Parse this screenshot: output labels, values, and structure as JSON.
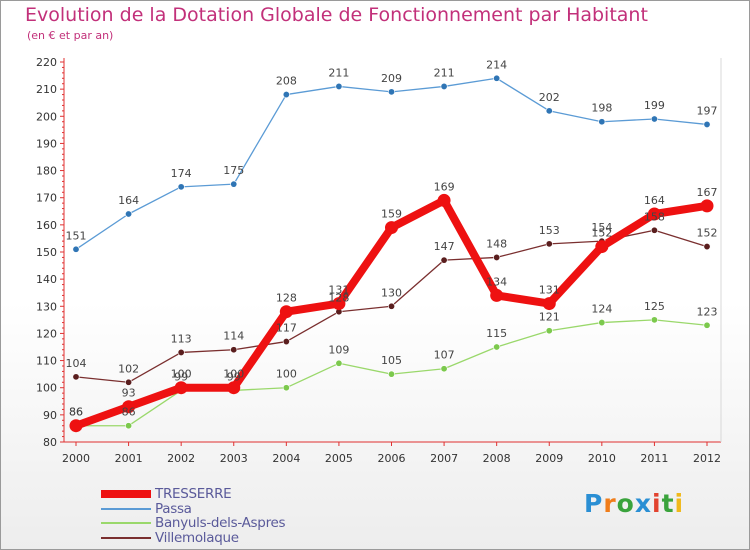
{
  "title": "Evolution de la Dotation Globale de Fonctionnement par Habitant",
  "subtitle": "(en € et par an)",
  "logo": {
    "text": "Proxiti",
    "letter_colors": [
      "#2a8fd4",
      "#f07d1a",
      "#3aa33c",
      "#2a8fd4",
      "#e2432f",
      "#3aa33c",
      "#f0b81a"
    ]
  },
  "chart_data": {
    "type": "line",
    "title": "Evolution de la Dotation Globale de Fonctionnement par Habitant",
    "subtitle": "(en € et par an)",
    "x": [
      "2000",
      "2001",
      "2002",
      "2003",
      "2004",
      "2005",
      "2006",
      "2007",
      "2008",
      "2009",
      "2010",
      "2011",
      "2012"
    ],
    "ylim": [
      80,
      220
    ],
    "yticks": [
      80,
      90,
      100,
      110,
      120,
      130,
      140,
      150,
      160,
      170,
      180,
      190,
      200,
      210,
      220
    ],
    "grid": false,
    "legend": "bottom-left",
    "series": [
      {
        "name": "Passa",
        "color": "#5b9bd5",
        "marker": "#2f75b5",
        "values": [
          151,
          164,
          174,
          175,
          208,
          211,
          209,
          211,
          214,
          202,
          198,
          199,
          197
        ]
      },
      {
        "name": "Banyuls-dels-Aspres",
        "color": "#9ad86b",
        "marker": "#7cc94d",
        "values": [
          86,
          86,
          99,
          99,
          100,
          109,
          105,
          107,
          115,
          121,
          124,
          125,
          123
        ]
      },
      {
        "name": "Villemolaque",
        "color": "#7a2f2f",
        "marker": "#5a1e1e",
        "values": [
          104,
          102,
          113,
          114,
          117,
          128,
          130,
          147,
          148,
          153,
          154,
          158,
          152
        ]
      },
      {
        "name": "TRESSERRE",
        "color": "#ee1111",
        "marker": "#ee1111",
        "values": [
          86,
          93,
          100,
          100,
          128,
          131,
          159,
          169,
          134,
          131,
          152,
          164,
          167
        ]
      }
    ],
    "legend_order": [
      "TRESSERRE",
      "Passa",
      "Banyuls-dels-Aspres",
      "Villemolaque"
    ],
    "label_color": "#5a5a9a",
    "axis_color": "#e03030"
  }
}
